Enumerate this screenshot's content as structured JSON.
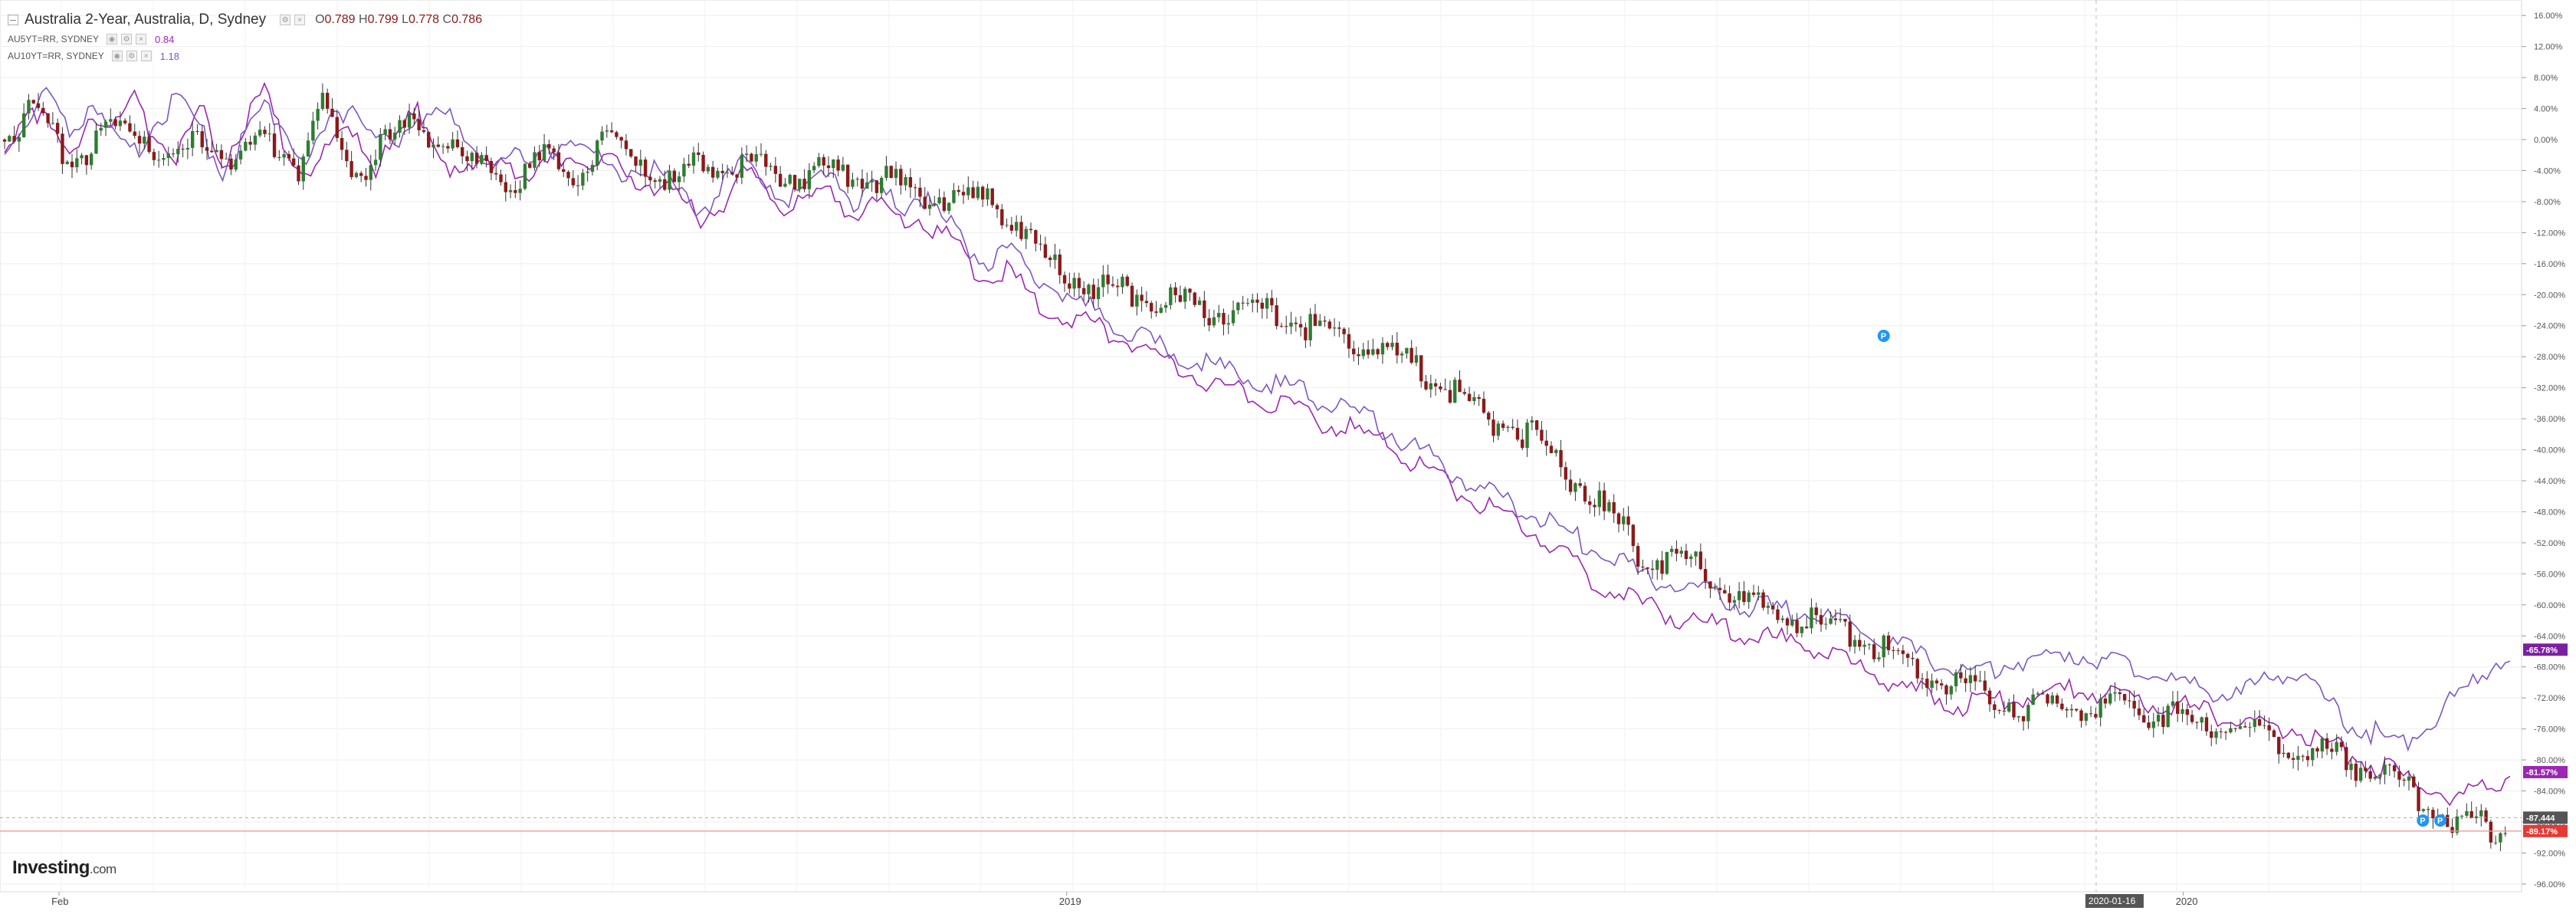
{
  "chart_data": {
    "type": "candlestick",
    "title": "Australia 2-Year, Australia, D, Sydney",
    "ohlc": {
      "open": "0.789",
      "high": "0.799",
      "low": "0.778",
      "close": "0.786"
    },
    "indicators": [
      {
        "name": "AU5YT=RR, SYDNEY",
        "value": "0.84",
        "color": "#9c27b0"
      },
      {
        "name": "AU10YT=RR, SYDNEY",
        "value": "1.18",
        "color": "#7e57c2"
      }
    ],
    "x_labels": [
      "Feb",
      "2019",
      "2020"
    ],
    "crosshair_date": "2020-01-16",
    "y_ticks": [
      "16.00%",
      "12.00%",
      "8.00%",
      "4.00%",
      "0.00%",
      "-4.00%",
      "-8.00%",
      "-12.00%",
      "-16.00%",
      "-20.00%",
      "-24.00%",
      "-28.00%",
      "-32.00%",
      "-36.00%",
      "-40.00%",
      "-44.00%",
      "-48.00%",
      "-52.00%",
      "-56.00%",
      "-60.00%",
      "-64.00%",
      "-68.00%",
      "-72.00%",
      "-76.00%",
      "-80.00%",
      "-84.00%",
      "-88.00%",
      "-92.00%",
      "-96.00%"
    ],
    "y_range": [
      -97,
      18
    ],
    "price_tags": [
      {
        "label": "-65.78%",
        "value": -65.78,
        "color": "#7b1fa2"
      },
      {
        "label": "-81.57%",
        "value": -81.57,
        "color": "#9c27b0"
      },
      {
        "label": "-87.444",
        "value": -87.444,
        "color": "#555555"
      },
      {
        "label": "-89.17%",
        "value": -89.17,
        "color": "#e53935"
      }
    ],
    "series_keypoints": {
      "main_2y": [
        [
          0,
          0
        ],
        [
          0.03,
          4
        ],
        [
          0.06,
          -3
        ],
        [
          0.09,
          0
        ],
        [
          0.12,
          2
        ],
        [
          0.15,
          -3
        ],
        [
          0.18,
          0
        ],
        [
          0.21,
          -2
        ],
        [
          0.25,
          0
        ],
        [
          0.27,
          -4
        ],
        [
          0.29,
          5
        ],
        [
          0.31,
          -2
        ],
        [
          0.33,
          -4
        ],
        [
          0.36,
          1
        ],
        [
          0.38,
          2
        ],
        [
          0.4,
          0
        ],
        [
          0.42,
          -3
        ],
        [
          0.44,
          -4
        ],
        [
          0.47,
          -5
        ],
        [
          0.5,
          -2
        ],
        [
          0.52,
          -5
        ],
        [
          0.55,
          0
        ],
        [
          0.58,
          -2
        ],
        [
          0.61,
          -6
        ],
        [
          0.64,
          -3
        ],
        [
          0.67,
          -3
        ],
        [
          0.69,
          -4
        ],
        [
          0.71,
          -4
        ],
        [
          0.73,
          -5
        ],
        [
          0.76,
          -4
        ],
        [
          0.78,
          -5
        ],
        [
          0.8,
          -5
        ],
        [
          0.82,
          -6
        ],
        [
          0.85,
          -7
        ],
        [
          0.87,
          -8
        ],
        [
          0.9,
          -8
        ],
        [
          0.93,
          -10
        ],
        [
          0.95,
          -15
        ],
        [
          1,
          -19
        ],
        [
          1.05,
          -20
        ],
        [
          1.1,
          -22
        ],
        [
          1.15,
          -22
        ],
        [
          1.2,
          -24
        ],
        [
          1.25,
          -26
        ],
        [
          1.3,
          -30
        ],
        [
          1.35,
          -35
        ],
        [
          1.4,
          -38
        ],
        [
          1.45,
          -45
        ],
        [
          1.5,
          -53
        ],
        [
          1.55,
          -55
        ],
        [
          1.6,
          -60
        ],
        [
          1.65,
          -62
        ],
        [
          1.7,
          -64
        ],
        [
          1.75,
          -68
        ],
        [
          1.8,
          -71
        ],
        [
          1.85,
          -73
        ],
        [
          1.9,
          -73
        ],
        [
          1.95,
          -73
        ],
        [
          2,
          -75
        ],
        [
          2.05,
          -76
        ],
        [
          2.1,
          -78
        ],
        [
          2.15,
          -80
        ],
        [
          2.2,
          -83
        ],
        [
          2.25,
          -88
        ],
        [
          2.3,
          -89
        ]
      ],
      "au5y": [
        [
          0,
          -2
        ],
        [
          0.02,
          5
        ],
        [
          0.04,
          2
        ],
        [
          0.06,
          -3
        ],
        [
          0.08,
          4
        ],
        [
          0.1,
          1
        ],
        [
          0.12,
          5
        ],
        [
          0.14,
          0
        ],
        [
          0.16,
          -2
        ],
        [
          0.18,
          4
        ],
        [
          0.2,
          -3
        ],
        [
          0.22,
          2
        ],
        [
          0.24,
          6
        ],
        [
          0.26,
          -2
        ],
        [
          0.28,
          -4
        ],
        [
          0.3,
          -1
        ],
        [
          0.32,
          2
        ],
        [
          0.34,
          -4
        ],
        [
          0.36,
          0
        ],
        [
          0.38,
          4
        ],
        [
          0.4,
          -2
        ],
        [
          0.42,
          -5
        ],
        [
          0.44,
          -3
        ],
        [
          0.46,
          -2
        ],
        [
          0.48,
          -6
        ],
        [
          0.5,
          -3
        ],
        [
          0.52,
          -2
        ],
        [
          0.54,
          -4
        ],
        [
          0.56,
          -3
        ],
        [
          0.58,
          -5
        ],
        [
          0.6,
          -6
        ],
        [
          0.62,
          -8
        ],
        [
          0.64,
          -10
        ],
        [
          0.66,
          -8
        ],
        [
          0.68,
          -4
        ],
        [
          0.7,
          -6
        ],
        [
          0.72,
          -9
        ],
        [
          0.74,
          -8
        ],
        [
          0.76,
          -7
        ],
        [
          0.78,
          -10
        ],
        [
          0.8,
          -8
        ],
        [
          0.82,
          -11
        ],
        [
          0.84,
          -10
        ],
        [
          0.86,
          -12
        ],
        [
          0.88,
          -15
        ],
        [
          0.9,
          -18
        ],
        [
          0.92,
          -17
        ],
        [
          0.94,
          -20
        ],
        [
          0.96,
          -22
        ],
        [
          1,
          -24
        ],
        [
          1.05,
          -27
        ],
        [
          1.1,
          -31
        ],
        [
          1.15,
          -33
        ],
        [
          1.2,
          -36
        ],
        [
          1.25,
          -38
        ],
        [
          1.3,
          -42
        ],
        [
          1.35,
          -47
        ],
        [
          1.4,
          -50
        ],
        [
          1.45,
          -56
        ],
        [
          1.5,
          -60
        ],
        [
          1.55,
          -62
        ],
        [
          1.6,
          -64
        ],
        [
          1.65,
          -65
        ],
        [
          1.7,
          -68
        ],
        [
          1.75,
          -71
        ],
        [
          1.8,
          -73
        ],
        [
          1.85,
          -72
        ],
        [
          1.9,
          -71
        ],
        [
          1.95,
          -72
        ],
        [
          2,
          -73
        ],
        [
          2.05,
          -75
        ],
        [
          2.1,
          -76
        ],
        [
          2.15,
          -79
        ],
        [
          2.2,
          -82
        ],
        [
          2.25,
          -85
        ],
        [
          2.3,
          -82
        ]
      ],
      "au10y": [
        [
          0,
          -1
        ],
        [
          0.02,
          3
        ],
        [
          0.04,
          6
        ],
        [
          0.06,
          1
        ],
        [
          0.08,
          5
        ],
        [
          0.1,
          0
        ],
        [
          0.12,
          -2
        ],
        [
          0.14,
          3
        ],
        [
          0.16,
          5
        ],
        [
          0.18,
          1
        ],
        [
          0.2,
          -4
        ],
        [
          0.22,
          0
        ],
        [
          0.24,
          4
        ],
        [
          0.26,
          1
        ],
        [
          0.28,
          -3
        ],
        [
          0.3,
          2
        ],
        [
          0.32,
          5
        ],
        [
          0.34,
          1
        ],
        [
          0.36,
          -2
        ],
        [
          0.38,
          3
        ],
        [
          0.4,
          5
        ],
        [
          0.42,
          0
        ],
        [
          0.44,
          -3
        ],
        [
          0.46,
          -1
        ],
        [
          0.48,
          -4
        ],
        [
          0.5,
          -2
        ],
        [
          0.52,
          1
        ],
        [
          0.54,
          -2
        ],
        [
          0.56,
          -5
        ],
        [
          0.58,
          -3
        ],
        [
          0.6,
          -4
        ],
        [
          0.62,
          -7
        ],
        [
          0.64,
          -9
        ],
        [
          0.66,
          -6
        ],
        [
          0.68,
          -3
        ],
        [
          0.7,
          -5
        ],
        [
          0.72,
          -8
        ],
        [
          0.74,
          -6
        ],
        [
          0.76,
          -4
        ],
        [
          0.78,
          -8
        ],
        [
          0.8,
          -6
        ],
        [
          0.82,
          -9
        ],
        [
          0.84,
          -7
        ],
        [
          0.86,
          -10
        ],
        [
          0.88,
          -13
        ],
        [
          0.9,
          -16
        ],
        [
          0.92,
          -14
        ],
        [
          0.94,
          -17
        ],
        [
          0.96,
          -19
        ],
        [
          1,
          -22
        ],
        [
          1.05,
          -26
        ],
        [
          1.1,
          -29
        ],
        [
          1.15,
          -31
        ],
        [
          1.2,
          -33
        ],
        [
          1.25,
          -36
        ],
        [
          1.3,
          -40
        ],
        [
          1.35,
          -45
        ],
        [
          1.4,
          -48
        ],
        [
          1.45,
          -52
        ],
        [
          1.5,
          -56
        ],
        [
          1.55,
          -58
        ],
        [
          1.6,
          -60
        ],
        [
          1.65,
          -61
        ],
        [
          1.7,
          -63
        ],
        [
          1.75,
          -66
        ],
        [
          1.8,
          -69
        ],
        [
          1.85,
          -67
        ],
        [
          1.9,
          -66
        ],
        [
          1.95,
          -68
        ],
        [
          2,
          -70
        ],
        [
          2.05,
          -72
        ],
        [
          2.1,
          -68
        ],
        [
          2.15,
          -75
        ],
        [
          2.2,
          -78
        ],
        [
          2.25,
          -72
        ],
        [
          2.3,
          -66
        ]
      ]
    }
  },
  "branding": {
    "logo_main": "Investing",
    "logo_suffix": ".com"
  }
}
